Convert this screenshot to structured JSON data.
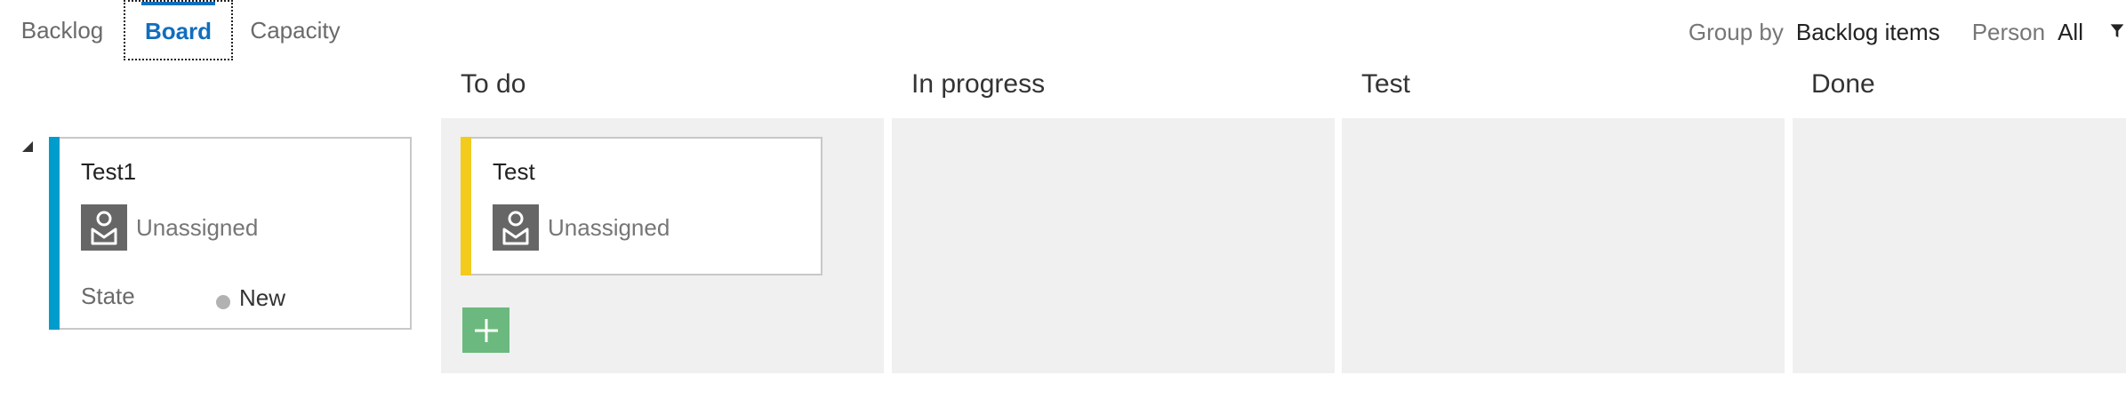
{
  "tabs": {
    "backlog": "Backlog",
    "board": "Board",
    "capacity": "Capacity"
  },
  "toolbar": {
    "group_by_label": "Group by",
    "group_by_value": "Backlog items",
    "person_label": "Person",
    "person_value": "All"
  },
  "columns": [
    {
      "title": "To do"
    },
    {
      "title": "In progress"
    },
    {
      "title": "Test"
    },
    {
      "title": "Done"
    }
  ],
  "backlog_item": {
    "title": "Test1",
    "assignee": "Unassigned",
    "state_label": "State",
    "state_value": "New",
    "stripe_color": "#009ccc"
  },
  "task_card": {
    "title": "Test",
    "assignee": "Unassigned",
    "stripe_color": "#f2cb1d"
  },
  "colors": {
    "accent": "#106ebe",
    "lane_bg": "#f0f0f0",
    "add_button": "#6bb97e",
    "state_new_dot": "#b2b2b2"
  },
  "icons": {
    "collapse": "collapse-triangle-icon",
    "avatar": "person-icon",
    "add": "plus-icon",
    "filter": "filter-icon"
  }
}
